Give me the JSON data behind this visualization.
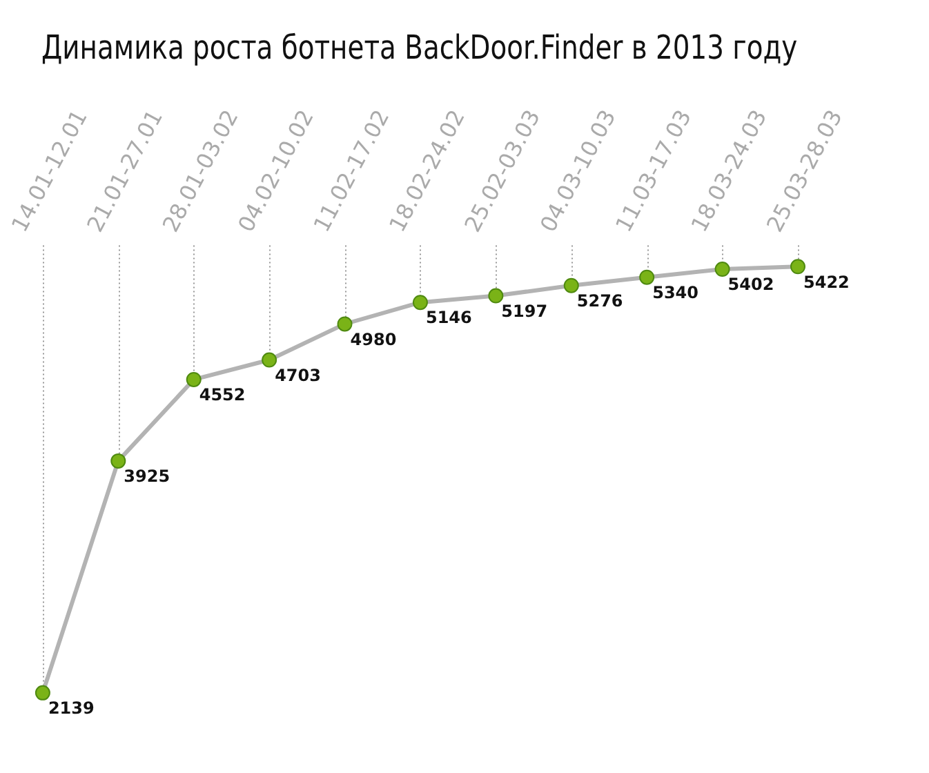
{
  "chart_data": {
    "type": "line",
    "title": "Динамика роста ботнета BackDoor.Finder в 2013 году",
    "categories": [
      "14.01-12.01",
      "21.01-27.01",
      "28.01-03.02",
      "04.02-10.02",
      "11.02-17.02",
      "18.02-24.02",
      "25.02-03.03",
      "04.03-10.03",
      "11.03-17.03",
      "18.03-24.03",
      "25.03-28.03"
    ],
    "values": [
      2139,
      3925,
      4552,
      4703,
      4980,
      5146,
      5197,
      5276,
      5340,
      5402,
      5422
    ],
    "color": "#b3b3b3",
    "marker": "circle",
    "data_labels": true,
    "grid": "x",
    "tick_labels": "x",
    "legend": false
  }
}
